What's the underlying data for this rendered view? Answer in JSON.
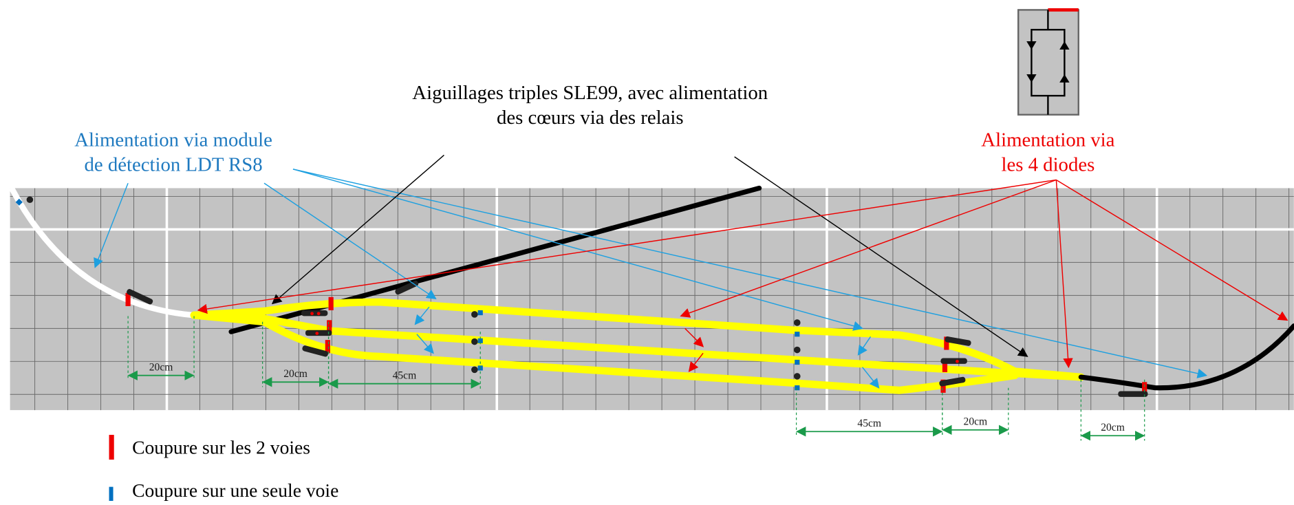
{
  "annotations": {
    "switches": {
      "lines": [
        "Aiguillages triples SLE99, avec alimentation",
        "des cœurs via des relais"
      ]
    },
    "detection": {
      "lines": [
        "Alimentation via module",
        "de détection LDT RS8"
      ]
    },
    "diodes": {
      "lines": [
        "Alimentation via",
        "les 4 diodes"
      ]
    }
  },
  "dimensions": [
    "20cm",
    "20cm",
    "45cm",
    "45cm",
    "20cm",
    "20cm"
  ],
  "legend": {
    "both_tracks": "Coupure sur les 2 voies",
    "one_track": "Coupure sur une seule voie"
  }
}
